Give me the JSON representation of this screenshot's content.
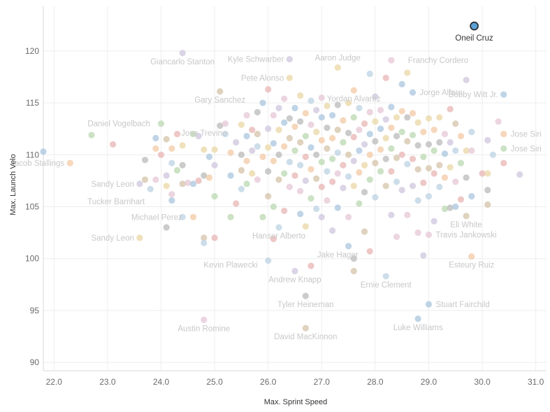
{
  "chart_data": {
    "type": "scatter",
    "title": "",
    "xlabel": "Max. Sprint Speed",
    "ylabel": "Max. Launch Velo",
    "xlim": [
      21.8,
      31.2
    ],
    "ylim": [
      89.2,
      124.3
    ],
    "x_ticks": [
      "22.0",
      "23.0",
      "24.0",
      "25.0",
      "26.0",
      "27.0",
      "28.0",
      "29.0",
      "30.0",
      "31.0"
    ],
    "y_ticks": [
      "90",
      "95",
      "100",
      "105",
      "110",
      "115",
      "120"
    ],
    "grid": true,
    "colors": [
      "#a9c6dd",
      "#f3c9a4",
      "#b9d8b0",
      "#e8b4b4",
      "#cfc6de",
      "#e9d7a4",
      "#b9b9b9",
      "#d4c3a8",
      "#bcd3e3",
      "#e5c7d6"
    ],
    "highlight_color": "#5aa1d6",
    "highlight": {
      "x": 29.85,
      "y": 122.4,
      "label": "Oneil Cruz"
    },
    "labeled": [
      {
        "x": 24.4,
        "y": 119.8,
        "label": "Giancarlo Stanton"
      },
      {
        "x": 26.4,
        "y": 119.2,
        "label": "Kyle Schwarber"
      },
      {
        "x": 27.3,
        "y": 118.4,
        "label": "Aaron Judge"
      },
      {
        "x": 28.3,
        "y": 119.1,
        "label": "Franchy Cordero"
      },
      {
        "x": 26.4,
        "y": 117.4,
        "label": "Pete Alonso"
      },
      {
        "x": 25.1,
        "y": 116.1,
        "label": "Gary Sanchez"
      },
      {
        "x": 27.6,
        "y": 116.2,
        "label": "Yordan Alvarez"
      },
      {
        "x": 28.7,
        "y": 116.0,
        "label": "Jorge Alfaro"
      },
      {
        "x": 30.4,
        "y": 115.8,
        "label": "Bobby Witt Jr."
      },
      {
        "x": 24.8,
        "y": 112.9,
        "label": "Jose Trevino"
      },
      {
        "x": 23.9,
        "y": 113.0,
        "label": "Daniel Vogelbach"
      },
      {
        "x": 30.4,
        "y": 112.0,
        "label": "Jose Siri"
      },
      {
        "x": 30.4,
        "y": 110.6,
        "label": "Jose Siri"
      },
      {
        "x": 22.3,
        "y": 109.2,
        "label": "Jacob Stallings"
      },
      {
        "x": 23.6,
        "y": 107.2,
        "label": "Sandy Leon"
      },
      {
        "x": 23.8,
        "y": 105.5,
        "label": "Tucker Barnhart"
      },
      {
        "x": 24.5,
        "y": 104.0,
        "label": "Michael Perez"
      },
      {
        "x": 26.2,
        "y": 103.0,
        "label": "Hanser Alberto"
      },
      {
        "x": 29.7,
        "y": 104.1,
        "label": "Eli White"
      },
      {
        "x": 29.0,
        "y": 102.3,
        "label": "Travis Jankowski"
      },
      {
        "x": 23.6,
        "y": 102.0,
        "label": "Sandy Leon"
      },
      {
        "x": 27.3,
        "y": 101.2,
        "label": "Jake Hager"
      },
      {
        "x": 25.3,
        "y": 100.2,
        "label": "Kevin Plawecki"
      },
      {
        "x": 29.8,
        "y": 100.2,
        "label": "Esteury Ruiz"
      },
      {
        "x": 26.5,
        "y": 98.8,
        "label": "Andrew Knapp"
      },
      {
        "x": 28.2,
        "y": 98.3,
        "label": "Ernie Clement"
      },
      {
        "x": 26.7,
        "y": 96.4,
        "label": "Tyler Heineman"
      },
      {
        "x": 29.0,
        "y": 95.6,
        "label": "Stuart Fairchild"
      },
      {
        "x": 24.8,
        "y": 94.1,
        "label": "Austin Romine"
      },
      {
        "x": 28.8,
        "y": 94.2,
        "label": "Luke Williams"
      },
      {
        "x": 26.7,
        "y": 93.3,
        "label": "David MacKinnon"
      }
    ],
    "points": [
      [
        21.8,
        110.3
      ],
      [
        22.3,
        109.2
      ],
      [
        22.7,
        111.9
      ],
      [
        23.1,
        111.0
      ],
      [
        23.6,
        107.2
      ],
      [
        23.6,
        102.0
      ],
      [
        23.7,
        109.5
      ],
      [
        23.7,
        107.6
      ],
      [
        23.8,
        106.7
      ],
      [
        23.9,
        107.6
      ],
      [
        23.9,
        111.6
      ],
      [
        23.9,
        110.6
      ],
      [
        24.0,
        113.0
      ],
      [
        24.0,
        110.0
      ],
      [
        24.1,
        108.0
      ],
      [
        24.1,
        107.0
      ],
      [
        24.1,
        103.0
      ],
      [
        24.1,
        111.5
      ],
      [
        24.2,
        109.2
      ],
      [
        24.2,
        106.2
      ],
      [
        24.2,
        105.6
      ],
      [
        24.2,
        110.6
      ],
      [
        24.3,
        108.5
      ],
      [
        24.3,
        112.0
      ],
      [
        24.4,
        119.8
      ],
      [
        24.4,
        110.9
      ],
      [
        24.4,
        109.0
      ],
      [
        24.4,
        107.2
      ],
      [
        24.4,
        104.0
      ],
      [
        24.5,
        107.3
      ],
      [
        24.6,
        107.2
      ],
      [
        24.6,
        104.0
      ],
      [
        24.6,
        112.0
      ],
      [
        24.7,
        107.5
      ],
      [
        24.7,
        111.8
      ],
      [
        24.8,
        110.5
      ],
      [
        24.8,
        108.0
      ],
      [
        24.8,
        102.0
      ],
      [
        24.8,
        101.5
      ],
      [
        24.8,
        94.1
      ],
      [
        24.9,
        109.8
      ],
      [
        24.9,
        107.8
      ],
      [
        25.0,
        106.0
      ],
      [
        25.0,
        102.0
      ],
      [
        25.0,
        109.0
      ],
      [
        25.0,
        110.5
      ],
      [
        25.1,
        112.8
      ],
      [
        25.1,
        116.1
      ],
      [
        25.2,
        112.0
      ],
      [
        25.2,
        113.0
      ],
      [
        25.3,
        108.0
      ],
      [
        25.3,
        110.2
      ],
      [
        25.3,
        104.0
      ],
      [
        25.4,
        105.3
      ],
      [
        25.4,
        111.2
      ],
      [
        25.5,
        112.9
      ],
      [
        25.5,
        110.0
      ],
      [
        25.5,
        108.5
      ],
      [
        25.5,
        106.7
      ],
      [
        25.6,
        113.8
      ],
      [
        25.6,
        111.8
      ],
      [
        25.6,
        109.4
      ],
      [
        25.6,
        107.2
      ],
      [
        25.7,
        112.4
      ],
      [
        25.7,
        110.4
      ],
      [
        25.7,
        108.2
      ],
      [
        25.8,
        114.1
      ],
      [
        25.8,
        112.0
      ],
      [
        25.8,
        110.8
      ],
      [
        25.8,
        107.6
      ],
      [
        25.9,
        115.0
      ],
      [
        25.9,
        109.8
      ],
      [
        25.9,
        104.0
      ],
      [
        26.0,
        116.3
      ],
      [
        26.0,
        112.5
      ],
      [
        26.0,
        110.7
      ],
      [
        26.0,
        108.4
      ],
      [
        26.0,
        106.0
      ],
      [
        26.0,
        99.8
      ],
      [
        26.1,
        113.8
      ],
      [
        26.1,
        111.1
      ],
      [
        26.1,
        109.4
      ],
      [
        26.1,
        105.0
      ],
      [
        26.1,
        101.9
      ],
      [
        26.2,
        114.5
      ],
      [
        26.2,
        112.4
      ],
      [
        26.2,
        110.0
      ],
      [
        26.2,
        107.6
      ],
      [
        26.2,
        103.0
      ],
      [
        26.3,
        115.4
      ],
      [
        26.3,
        113.1
      ],
      [
        26.3,
        110.8
      ],
      [
        26.3,
        108.2
      ],
      [
        26.3,
        104.6
      ],
      [
        26.4,
        119.2
      ],
      [
        26.4,
        117.4
      ],
      [
        26.4,
        113.5
      ],
      [
        26.4,
        111.6
      ],
      [
        26.4,
        109.3
      ],
      [
        26.4,
        106.9
      ],
      [
        26.5,
        114.5
      ],
      [
        26.5,
        112.7
      ],
      [
        26.5,
        110.4
      ],
      [
        26.5,
        108.0
      ],
      [
        26.5,
        98.8
      ],
      [
        26.6,
        115.7
      ],
      [
        26.6,
        113.2
      ],
      [
        26.6,
        111.2
      ],
      [
        26.6,
        109.0
      ],
      [
        26.6,
        106.5
      ],
      [
        26.6,
        104.3
      ],
      [
        26.7,
        114.0
      ],
      [
        26.7,
        111.8
      ],
      [
        26.7,
        109.8
      ],
      [
        26.7,
        107.5
      ],
      [
        26.7,
        103.1
      ],
      [
        26.7,
        96.4
      ],
      [
        26.7,
        93.3
      ],
      [
        26.8,
        115.2
      ],
      [
        26.8,
        112.9
      ],
      [
        26.8,
        110.7
      ],
      [
        26.8,
        108.6
      ],
      [
        26.8,
        105.8
      ],
      [
        26.8,
        99.3
      ],
      [
        26.9,
        114.3
      ],
      [
        26.9,
        112.2
      ],
      [
        26.9,
        110.0
      ],
      [
        26.9,
        107.7
      ],
      [
        26.9,
        104.8
      ],
      [
        27.0,
        115.5
      ],
      [
        27.0,
        113.6
      ],
      [
        27.0,
        111.4
      ],
      [
        27.0,
        109.3
      ],
      [
        27.0,
        106.9
      ],
      [
        27.0,
        104.0
      ],
      [
        27.1,
        114.7
      ],
      [
        27.1,
        112.6
      ],
      [
        27.1,
        110.6
      ],
      [
        27.1,
        108.4
      ],
      [
        27.1,
        105.6
      ],
      [
        27.2,
        113.8
      ],
      [
        27.2,
        111.6
      ],
      [
        27.2,
        109.6
      ],
      [
        27.2,
        107.4
      ],
      [
        27.2,
        102.7
      ],
      [
        27.3,
        118.4
      ],
      [
        27.3,
        114.8
      ],
      [
        27.3,
        112.4
      ],
      [
        27.3,
        110.2
      ],
      [
        27.3,
        108.2
      ],
      [
        27.3,
        104.9
      ],
      [
        27.4,
        113.3
      ],
      [
        27.4,
        111.2
      ],
      [
        27.4,
        109.0
      ],
      [
        27.4,
        106.8
      ],
      [
        27.5,
        115.0
      ],
      [
        27.5,
        112.1
      ],
      [
        27.5,
        110.0
      ],
      [
        27.5,
        107.9
      ],
      [
        27.5,
        104.0
      ],
      [
        27.5,
        101.2
      ],
      [
        27.6,
        116.2
      ],
      [
        27.6,
        113.6
      ],
      [
        27.6,
        111.7
      ],
      [
        27.6,
        109.4
      ],
      [
        27.6,
        107.0
      ],
      [
        27.6,
        100.0
      ],
      [
        27.6,
        98.8
      ],
      [
        27.7,
        114.5
      ],
      [
        27.7,
        112.4
      ],
      [
        27.7,
        110.4
      ],
      [
        27.7,
        108.3
      ],
      [
        27.7,
        105.3
      ],
      [
        27.8,
        113.0
      ],
      [
        27.8,
        111.0
      ],
      [
        27.8,
        109.0
      ],
      [
        27.8,
        106.4
      ],
      [
        27.8,
        102.6
      ],
      [
        27.9,
        117.8
      ],
      [
        27.9,
        114.1
      ],
      [
        27.9,
        112.0
      ],
      [
        27.9,
        110.0
      ],
      [
        27.9,
        107.6
      ],
      [
        27.9,
        100.7
      ],
      [
        28.0,
        115.6
      ],
      [
        28.0,
        113.2
      ],
      [
        28.0,
        111.3
      ],
      [
        28.0,
        109.2
      ],
      [
        28.0,
        105.9
      ],
      [
        28.1,
        114.3
      ],
      [
        28.1,
        112.5
      ],
      [
        28.1,
        110.5
      ],
      [
        28.1,
        108.4
      ],
      [
        28.2,
        117.4
      ],
      [
        28.2,
        113.4
      ],
      [
        28.2,
        111.6
      ],
      [
        28.2,
        109.6
      ],
      [
        28.2,
        107.0
      ],
      [
        28.2,
        98.3
      ],
      [
        28.3,
        119.1
      ],
      [
        28.3,
        114.6
      ],
      [
        28.3,
        112.6
      ],
      [
        28.3,
        110.6
      ],
      [
        28.3,
        108.4
      ],
      [
        28.3,
        104.2
      ],
      [
        28.4,
        113.6
      ],
      [
        28.4,
        111.8
      ],
      [
        28.4,
        109.7
      ],
      [
        28.4,
        107.4
      ],
      [
        28.4,
        102.1
      ],
      [
        28.5,
        116.8
      ],
      [
        28.5,
        114.2
      ],
      [
        28.5,
        112.2
      ],
      [
        28.5,
        110.0
      ],
      [
        28.5,
        106.6
      ],
      [
        28.6,
        117.9
      ],
      [
        28.6,
        113.6
      ],
      [
        28.6,
        111.3
      ],
      [
        28.6,
        109.1
      ],
      [
        28.6,
        104.2
      ],
      [
        28.7,
        116.0
      ],
      [
        28.7,
        114.0
      ],
      [
        28.7,
        111.9
      ],
      [
        28.7,
        109.6
      ],
      [
        28.7,
        107.0
      ],
      [
        28.8,
        113.1
      ],
      [
        28.8,
        110.9
      ],
      [
        28.8,
        108.6
      ],
      [
        28.8,
        105.6
      ],
      [
        28.8,
        102.5
      ],
      [
        28.8,
        94.2
      ],
      [
        28.9,
        112.2
      ],
      [
        28.9,
        109.8
      ],
      [
        28.9,
        107.3
      ],
      [
        28.9,
        100.3
      ],
      [
        29.0,
        113.5
      ],
      [
        29.0,
        111.0
      ],
      [
        29.0,
        108.7
      ],
      [
        29.0,
        106.0
      ],
      [
        29.0,
        102.3
      ],
      [
        29.0,
        95.6
      ],
      [
        29.1,
        112.4
      ],
      [
        29.1,
        110.4
      ],
      [
        29.1,
        108.2
      ],
      [
        29.1,
        103.6
      ],
      [
        29.2,
        113.6
      ],
      [
        29.2,
        111.2
      ],
      [
        29.2,
        109.0
      ],
      [
        29.2,
        106.9
      ],
      [
        29.3,
        112.0
      ],
      [
        29.3,
        110.1
      ],
      [
        29.3,
        107.8
      ],
      [
        29.3,
        104.8
      ],
      [
        29.4,
        114.4
      ],
      [
        29.4,
        111.2
      ],
      [
        29.4,
        108.8
      ],
      [
        29.4,
        104.9
      ],
      [
        29.5,
        113.0
      ],
      [
        29.5,
        110.4
      ],
      [
        29.5,
        107.4
      ],
      [
        29.5,
        105.0
      ],
      [
        29.6,
        111.8
      ],
      [
        29.6,
        109.2
      ],
      [
        29.6,
        105.7
      ],
      [
        29.7,
        117.2
      ],
      [
        29.7,
        110.4
      ],
      [
        29.7,
        107.8
      ],
      [
        29.7,
        104.1
      ],
      [
        29.8,
        112.2
      ],
      [
        29.8,
        110.4
      ],
      [
        29.8,
        106.0
      ],
      [
        29.8,
        100.2
      ],
      [
        29.85,
        122.4
      ],
      [
        30.0,
        108.2
      ],
      [
        30.1,
        111.4
      ],
      [
        30.1,
        108.2
      ],
      [
        30.1,
        106.6
      ],
      [
        30.1,
        105.2
      ],
      [
        30.2,
        110.0
      ],
      [
        30.3,
        113.2
      ],
      [
        30.4,
        115.8
      ],
      [
        30.4,
        112.0
      ],
      [
        30.4,
        110.6
      ],
      [
        30.4,
        109.2
      ],
      [
        30.7,
        108.1
      ]
    ]
  }
}
